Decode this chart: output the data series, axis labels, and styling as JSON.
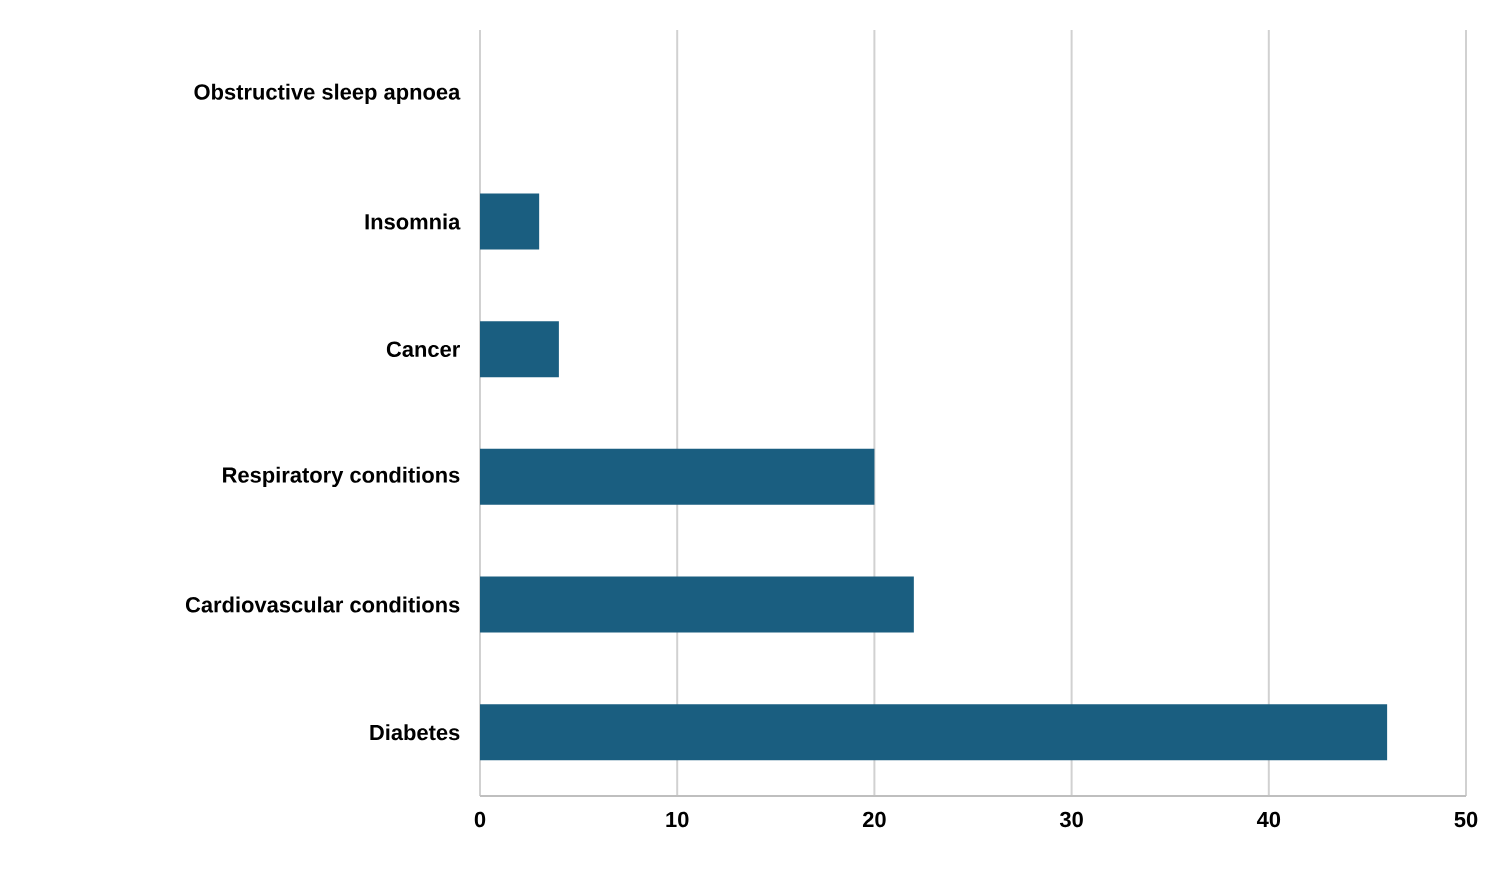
{
  "chart_data": {
    "type": "bar",
    "orientation": "horizontal",
    "categories": [
      "Obstructive sleep apnoea",
      "Insomnia",
      "Cancer",
      "Respiratory conditions",
      "Cardiovascular conditions",
      "Diabetes"
    ],
    "values": [
      0,
      3,
      4,
      20,
      22,
      46
    ],
    "color": "#1a5e80",
    "xlim": [
      0,
      50
    ],
    "xticks": [
      0,
      10,
      20,
      30,
      40,
      50
    ],
    "grid": "x"
  }
}
